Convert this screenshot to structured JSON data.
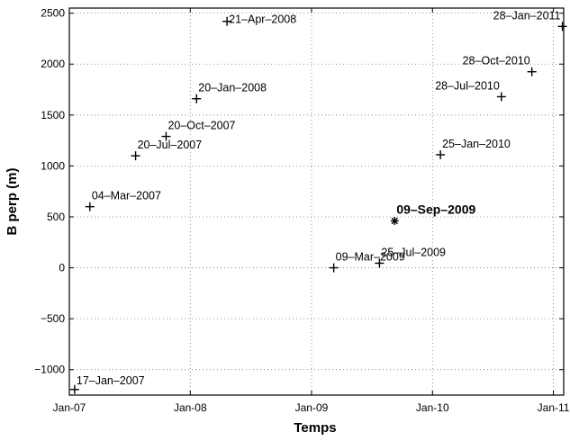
{
  "chart_data": {
    "type": "scatter",
    "xlabel": "Temps",
    "ylabel": "B perp (m)",
    "x_ticks": [
      "2007-01-01",
      "2008-01-01",
      "2009-01-01",
      "2010-01-01",
      "2011-01-01"
    ],
    "x_tick_labels": [
      "Jan-07",
      "Jan-08",
      "Jan-09",
      "Jan-10",
      "Jan-11"
    ],
    "y_ticks": [
      -1000,
      -500,
      0,
      500,
      1000,
      1500,
      2000,
      2500
    ],
    "y_tick_labels": [
      "−1000",
      "−500",
      "0",
      "500",
      "1000",
      "1500",
      "2000",
      "2500"
    ],
    "xlim": [
      "2007-01-01",
      "2011-02-01"
    ],
    "ylim": [
      -1250,
      2550
    ],
    "grid": true,
    "series": [
      {
        "points": [
          {
            "date": "2007-01-17",
            "y": -1195,
            "label": "17–Jan–2007",
            "marker": "+"
          },
          {
            "date": "2007-03-04",
            "y": 600,
            "label": "04–Mar–2007",
            "marker": "+"
          },
          {
            "date": "2007-07-20",
            "y": 1100,
            "label": "20–Jul–2007",
            "marker": "+"
          },
          {
            "date": "2007-10-20",
            "y": 1290,
            "label": "20–Oct–2007",
            "marker": "+"
          },
          {
            "date": "2008-01-20",
            "y": 1660,
            "label": "20–Jan–2008",
            "marker": "+"
          },
          {
            "date": "2008-04-21",
            "y": 2420,
            "label": "21–Apr–2008",
            "marker": "+"
          },
          {
            "date": "2009-03-09",
            "y": 0,
            "label": "09–Mar–2009",
            "marker": "+"
          },
          {
            "date": "2009-07-25",
            "y": 45,
            "label": "25–Jul–2009",
            "marker": "+"
          },
          {
            "date": "2009-09-09",
            "y": 460,
            "label": "09–Sep–2009",
            "marker": "*",
            "bold": true
          },
          {
            "date": "2010-01-25",
            "y": 1110,
            "label": "25–Jan–2010",
            "marker": "+"
          },
          {
            "date": "2010-07-28",
            "y": 1680,
            "label": "28–Jul–2010",
            "marker": "+"
          },
          {
            "date": "2010-10-28",
            "y": 1925,
            "label": "28–Oct–2010",
            "marker": "+"
          },
          {
            "date": "2011-01-28",
            "y": 2370,
            "label": "28–Jan–2011",
            "marker": "+"
          }
        ]
      }
    ]
  }
}
